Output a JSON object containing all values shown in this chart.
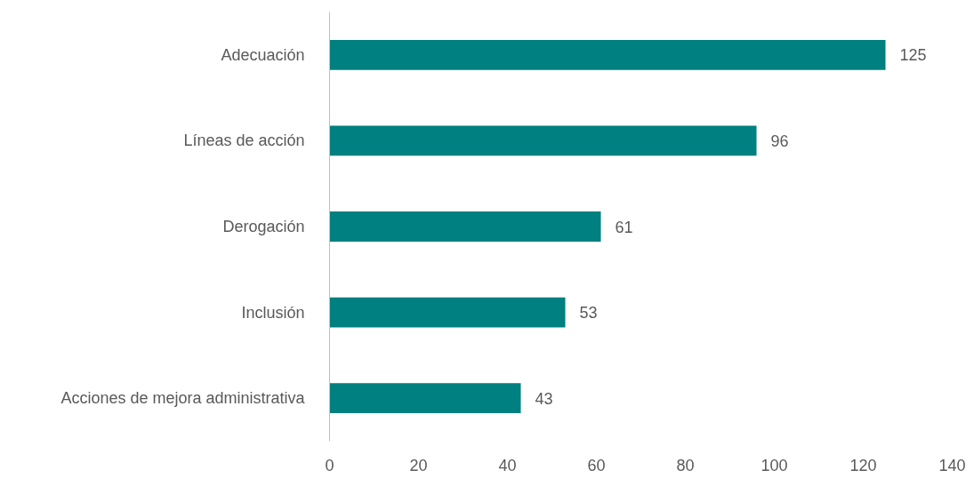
{
  "chart_data": {
    "type": "bar",
    "orientation": "horizontal",
    "categories": [
      "Adecuación",
      "Líneas de acción",
      "Derogación",
      "Inclusión",
      "Acciones de mejora administrativa"
    ],
    "values": [
      125,
      96,
      61,
      53,
      43
    ],
    "color": "#008080",
    "xlim": [
      0,
      140
    ],
    "xticks": [
      0,
      20,
      40,
      60,
      80,
      100,
      120,
      140
    ],
    "data_labels": true,
    "grid": false
  }
}
